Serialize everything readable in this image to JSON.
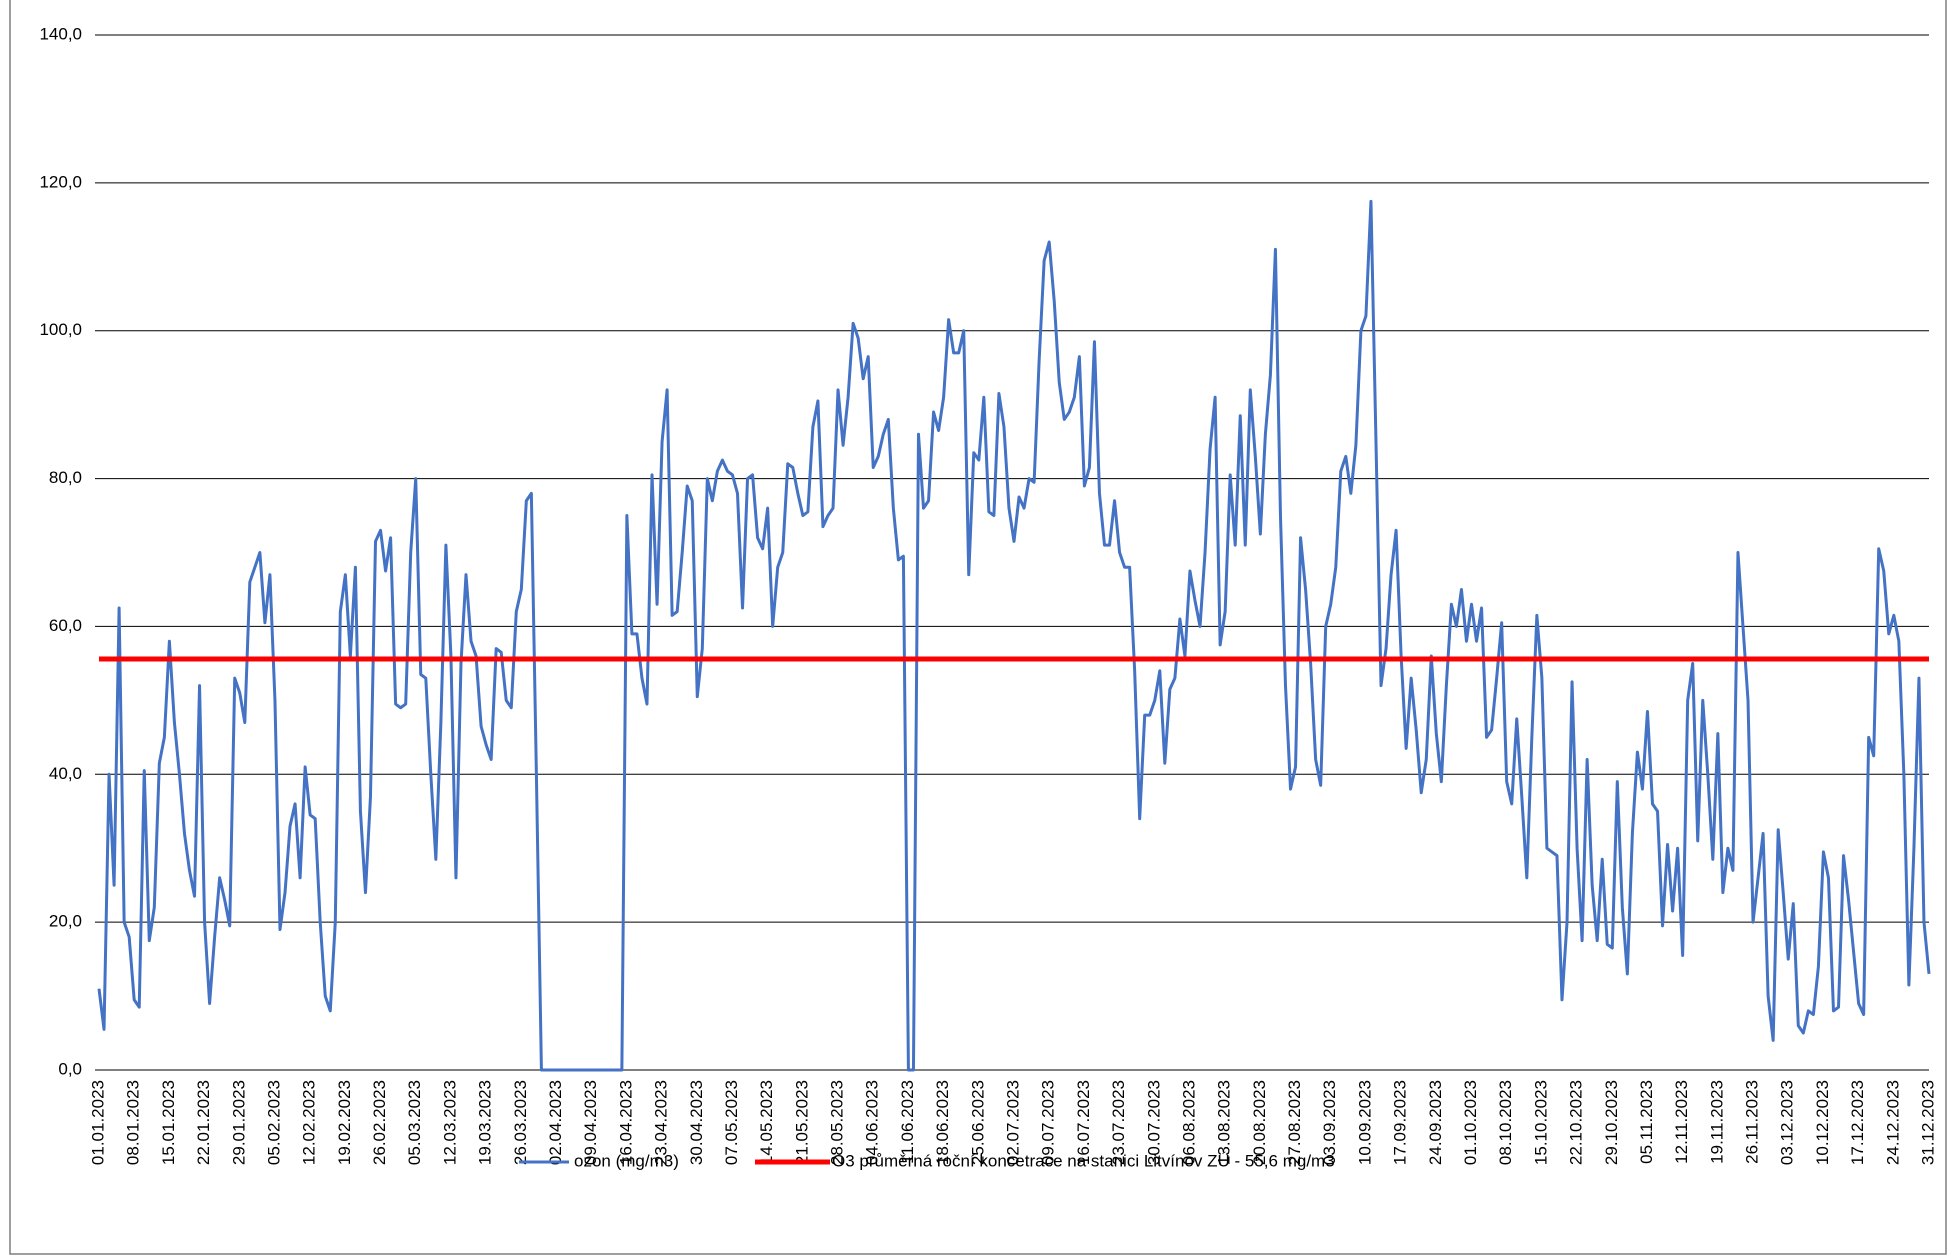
{
  "chart_data": {
    "type": "line",
    "categories": [
      "01.01.2023",
      null,
      null,
      null,
      null,
      null,
      null,
      "08.01.2023",
      null,
      null,
      null,
      null,
      null,
      null,
      "15.01.2023",
      null,
      null,
      null,
      null,
      null,
      null,
      "22.01.2023",
      null,
      null,
      null,
      null,
      null,
      null,
      "29.01.2023",
      null,
      null,
      null,
      null,
      null,
      null,
      "05.02.2023",
      null,
      null,
      null,
      null,
      null,
      null,
      "12.02.2023",
      null,
      null,
      null,
      null,
      null,
      null,
      "19.02.2023",
      null,
      null,
      null,
      null,
      null,
      null,
      "26.02.2023",
      null,
      null,
      null,
      null,
      null,
      null,
      "05.03.2023",
      null,
      null,
      null,
      null,
      null,
      null,
      "12.03.2023",
      null,
      null,
      null,
      null,
      null,
      null,
      "19.03.2023",
      null,
      null,
      null,
      null,
      null,
      null,
      "26.03.2023",
      null,
      null,
      null,
      null,
      null,
      null,
      "02.04.2023",
      null,
      null,
      null,
      null,
      null,
      null,
      "09.04.2023",
      null,
      null,
      null,
      null,
      null,
      null,
      "16.04.2023",
      null,
      null,
      null,
      null,
      null,
      null,
      "23.04.2023",
      null,
      null,
      null,
      null,
      null,
      null,
      "30.04.2023",
      null,
      null,
      null,
      null,
      null,
      null,
      "07.05.2023",
      null,
      null,
      null,
      null,
      null,
      null,
      "14.05.2023",
      null,
      null,
      null,
      null,
      null,
      null,
      "21.05.2023",
      null,
      null,
      null,
      null,
      null,
      null,
      "28.05.2023",
      null,
      null,
      null,
      null,
      null,
      null,
      "04.06.2023",
      null,
      null,
      null,
      null,
      null,
      null,
      "11.06.2023",
      null,
      null,
      null,
      null,
      null,
      null,
      "18.06.2023",
      null,
      null,
      null,
      null,
      null,
      null,
      "25.06.2023",
      null,
      null,
      null,
      null,
      null,
      null,
      "02.07.2023",
      null,
      null,
      null,
      null,
      null,
      null,
      "09.07.2023",
      null,
      null,
      null,
      null,
      null,
      null,
      "16.07.2023",
      null,
      null,
      null,
      null,
      null,
      null,
      "23.07.2023",
      null,
      null,
      null,
      null,
      null,
      null,
      "30.07.2023",
      null,
      null,
      null,
      null,
      null,
      null,
      "06.08.2023",
      null,
      null,
      null,
      null,
      null,
      null,
      "13.08.2023",
      null,
      null,
      null,
      null,
      null,
      null,
      "20.08.2023",
      null,
      null,
      null,
      null,
      null,
      null,
      "27.08.2023",
      null,
      null,
      null,
      null,
      null,
      null,
      "03.09.2023",
      null,
      null,
      null,
      null,
      null,
      null,
      "10.09.2023",
      null,
      null,
      null,
      null,
      null,
      null,
      "17.09.2023",
      null,
      null,
      null,
      null,
      null,
      null,
      "24.09.2023",
      null,
      null,
      null,
      null,
      null,
      null,
      "01.10.2023",
      null,
      null,
      null,
      null,
      null,
      null,
      "08.10.2023",
      null,
      null,
      null,
      null,
      null,
      null,
      "15.10.2023",
      null,
      null,
      null,
      null,
      null,
      null,
      "22.10.2023",
      null,
      null,
      null,
      null,
      null,
      null,
      "29.10.2023",
      null,
      null,
      null,
      null,
      null,
      null,
      "05.11.2023",
      null,
      null,
      null,
      null,
      null,
      null,
      "12.11.2023",
      null,
      null,
      null,
      null,
      null,
      null,
      "19.11.2023",
      null,
      null,
      null,
      null,
      null,
      null,
      "26.11.2023",
      null,
      null,
      null,
      null,
      null,
      null,
      "03.12.2023",
      null,
      null,
      null,
      null,
      null,
      null,
      "10.12.2023",
      null,
      null,
      null,
      null,
      null,
      null,
      "17.12.2023",
      null,
      null,
      null,
      null,
      null,
      null,
      "24.12.2023",
      null,
      null,
      null,
      null,
      null,
      null,
      "31.12.2023"
    ],
    "series": [
      {
        "name": "ozon (mg/m3)",
        "color": "#4472c4",
        "values": [
          11,
          5.5,
          40,
          25,
          62.5,
          20,
          18,
          9.5,
          8.5,
          40.5,
          17.5,
          22,
          41.5,
          45,
          58,
          47,
          40,
          32,
          27,
          23.5,
          52,
          20,
          9,
          18,
          26,
          23,
          19.5,
          53,
          51,
          47,
          66,
          68,
          70,
          60.5,
          67,
          50,
          19,
          24,
          33,
          36,
          26,
          41,
          34.5,
          34,
          20,
          10,
          8,
          20,
          62,
          67,
          56,
          68,
          35,
          24,
          37,
          71.5,
          73,
          67.5,
          72,
          49.5,
          49,
          49.5,
          70,
          80,
          53.5,
          53,
          40,
          28.5,
          47,
          71,
          56,
          26,
          55,
          67,
          58,
          56,
          46.5,
          44,
          42,
          57,
          56.5,
          50,
          49,
          62,
          65,
          77,
          78,
          40,
          0,
          0,
          0,
          0,
          0,
          0,
          0,
          0,
          0,
          0,
          0,
          0,
          0,
          0,
          0,
          0,
          0,
          75,
          59,
          59,
          53,
          49.5,
          80.5,
          63,
          85,
          92,
          61.5,
          62,
          70,
          79,
          77,
          50.5,
          57,
          80,
          77,
          81,
          82.5,
          81,
          80.5,
          78,
          62.5,
          80,
          80.5,
          72,
          70.5,
          76,
          60,
          68,
          70,
          82,
          81.5,
          78,
          75,
          75.5,
          87,
          90.5,
          73.5,
          75,
          76,
          92,
          84.5,
          91,
          101,
          99,
          93.5,
          96.5,
          81.5,
          83,
          86,
          88,
          76,
          69,
          69.5,
          0,
          0,
          86,
          76,
          77,
          89,
          86.5,
          91,
          101.5,
          97,
          97,
          100,
          67,
          83.5,
          82.5,
          91,
          75.5,
          75,
          91.5,
          87,
          76,
          71.5,
          77.5,
          76,
          80,
          79.5,
          96,
          109.5,
          112,
          104,
          93,
          88,
          89,
          91,
          96.5,
          79,
          81.5,
          98.5,
          78,
          71,
          71,
          77,
          70,
          68,
          68,
          54,
          34,
          48,
          48,
          50,
          54,
          41.5,
          51.5,
          53,
          61,
          56,
          67.5,
          63.5,
          60,
          70,
          84,
          91,
          57.5,
          62,
          80.5,
          71,
          88.5,
          71,
          92,
          83,
          72.5,
          86,
          94,
          111,
          75,
          52,
          38,
          41,
          72,
          65,
          55,
          42,
          38.5,
          60,
          63,
          68,
          81,
          83,
          78,
          84.5,
          100,
          102,
          117.5,
          85,
          52,
          57,
          67,
          73,
          56,
          43.5,
          53,
          46,
          37.5,
          42,
          56,
          45.5,
          39,
          52,
          63,
          60,
          65,
          58,
          63,
          58,
          62.5,
          45,
          46,
          53,
          60.5,
          39,
          36,
          47.5,
          37,
          26,
          45,
          61.5,
          53,
          30,
          29.5,
          29,
          9.5,
          20,
          52.5,
          30,
          17.5,
          42,
          25,
          17.5,
          28.5,
          17,
          16.5,
          39,
          22,
          13,
          32,
          43,
          38,
          48.5,
          36,
          35,
          19.5,
          30.5,
          21.5,
          30,
          15.5,
          50,
          55,
          31,
          50,
          40,
          28.5,
          45.5,
          24,
          30,
          27,
          70,
          60,
          50,
          20,
          26,
          32,
          10,
          4,
          32.5,
          24,
          15,
          22.5,
          6,
          5,
          8,
          7.5,
          14,
          29.5,
          26,
          8,
          8.5,
          29,
          23,
          16,
          9,
          7.5,
          45,
          42.5,
          70.5,
          67.5,
          59,
          61.5,
          58,
          40,
          11.5,
          30,
          53,
          20,
          13
        ]
      }
    ],
    "reference_line": {
      "name": "O3 průměrná roční koncetrace na stanici Litvínov ZÚ - 55,6 mg/m3",
      "value": 55.6,
      "color": "#ff0000"
    },
    "ylim": [
      0,
      140
    ],
    "yticks": [
      {
        "value": 0,
        "label": "0,0"
      },
      {
        "value": 20,
        "label": "20,0"
      },
      {
        "value": 40,
        "label": "40,0"
      },
      {
        "value": 60,
        "label": "60,0"
      },
      {
        "value": 80,
        "label": "80,0"
      },
      {
        "value": 100,
        "label": "100,0"
      },
      {
        "value": 120,
        "label": "120,0"
      },
      {
        "value": 140,
        "label": "140,0"
      }
    ],
    "grid": true,
    "legend": "bottom"
  }
}
